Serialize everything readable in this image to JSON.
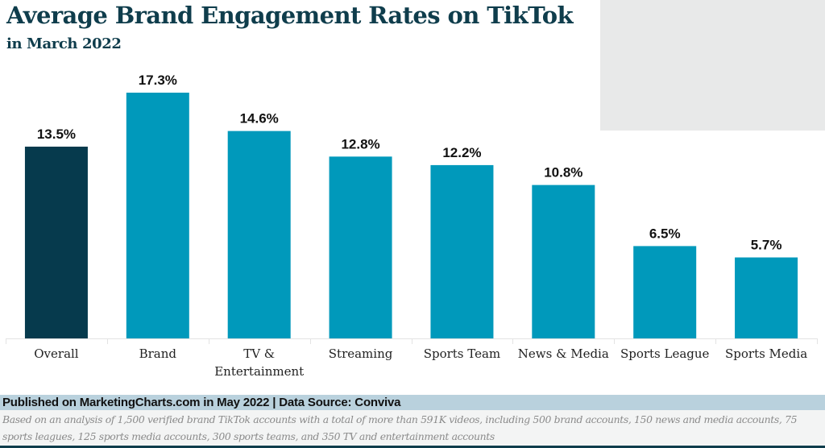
{
  "header": {
    "title": "Average Brand Engagement Rates on TikTok",
    "subtitle": "in March 2022"
  },
  "colors": {
    "title": "#0f3d4c",
    "highlight_bar": "#063a4d",
    "bar": "#0099bb",
    "footer_band": "#b9d1dd"
  },
  "chart_data": {
    "type": "bar",
    "title": "Average Brand Engagement Rates on TikTok",
    "subtitle": "in March 2022",
    "xlabel": "",
    "ylabel": "",
    "ylim": [
      0,
      17.3
    ],
    "grid": false,
    "legend": "none",
    "categories": [
      "Overall",
      "Brand",
      "TV & Entertainment",
      "Streaming",
      "Sports Team",
      "News & Media",
      "Sports League",
      "Sports Media"
    ],
    "category_lines": [
      [
        "Overall"
      ],
      [
        "Brand"
      ],
      [
        "TV &",
        "Entertainment"
      ],
      [
        "Streaming"
      ],
      [
        "Sports Team"
      ],
      [
        "News & Media"
      ],
      [
        "Sports League"
      ],
      [
        "Sports Media"
      ]
    ],
    "values": [
      13.5,
      17.3,
      14.6,
      12.8,
      12.2,
      10.8,
      6.5,
      5.7
    ],
    "data_labels": [
      "13.5%",
      "17.3%",
      "14.6%",
      "12.8%",
      "12.2%",
      "10.8%",
      "6.5%",
      "5.7%"
    ],
    "unit": "%",
    "highlighted_category": "Overall"
  },
  "footer": {
    "published": "Published on MarketingCharts.com in May 2022 | Data Source: Conviva",
    "note": "Based on an analysis of 1,500 verified brand TikTok accounts with a total of more than 591K videos, including 500 brand accounts, 150 news and media accounts, 75 sports leagues, 125 sports media accounts, 300 sports teams, and 350 TV and entertainment accounts"
  }
}
